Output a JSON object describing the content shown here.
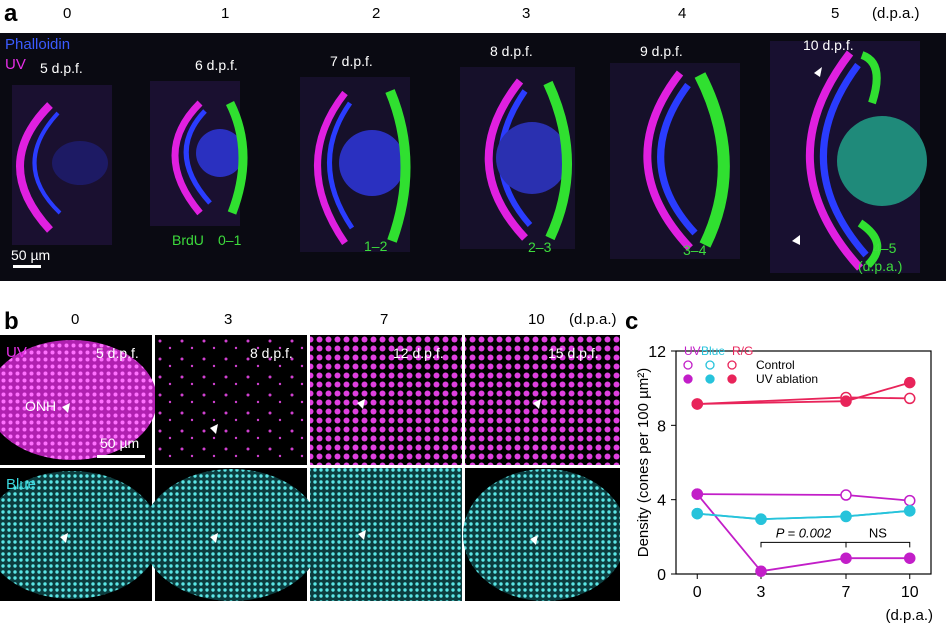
{
  "panel_a": {
    "label": "a",
    "dpa_headers": [
      "0",
      "1",
      "2",
      "3",
      "4",
      "5"
    ],
    "dpa_unit": "(d.p.a.)",
    "stain_phalloidin": "Phalloidin",
    "stain_uv": "UV",
    "dpf_labels": [
      "5 d.p.f.",
      "6 d.p.f.",
      "7 d.p.f.",
      "8 d.p.f.",
      "9 d.p.f.",
      "10 d.p.f."
    ],
    "brdu_label": "BrdU",
    "brdu_ranges": [
      "0–1",
      "1–2",
      "2–3",
      "3–4",
      "4–5"
    ],
    "brdu_unit": "(d.p.a.)",
    "scale_bar": "50 µm",
    "colors": {
      "phalloidin": "#2233ff",
      "uv": "#e020e0",
      "brdu": "#30e030",
      "background": "#0a0a12"
    }
  },
  "panel_b": {
    "label": "b",
    "dpa_headers": [
      "0",
      "3",
      "7",
      "10"
    ],
    "dpa_unit": "(d.p.a.)",
    "row_uv": "UV",
    "row_blue": "Blue",
    "dpf_labels": [
      "5 d.p.f.",
      "8 d.p.f.",
      "12 d.p.f.",
      "15 d.p.f."
    ],
    "onh_label": "ONH",
    "scale_bar": "50 µm",
    "colors": {
      "uv": "#d02cd0",
      "blue": "#30c8c8"
    }
  },
  "panel_c": {
    "label": "c",
    "chart_data": {
      "type": "line",
      "title": "",
      "xlabel": "(d.p.a.)",
      "ylabel": "Density (cones per 100 µm²)",
      "x": [
        0,
        3,
        7,
        10
      ],
      "xticks": [
        "0",
        "3",
        "7",
        "10"
      ],
      "yticks": [
        "0",
        "4",
        "8",
        "12"
      ],
      "ylim": [
        0,
        12
      ],
      "xlim": [
        -1,
        11
      ],
      "legend_colors": [
        "UV",
        "Blue",
        "R/G"
      ],
      "legend_conditions": [
        "Control",
        "UV ablation"
      ],
      "legend_placement": "top-left",
      "series": [
        {
          "name": "Control",
          "cone": "UV",
          "color": "#c21ec8",
          "open": true,
          "x": [
            0,
            7,
            10
          ],
          "y": [
            4.3,
            4.25,
            3.95
          ]
        },
        {
          "name": "UV ablation",
          "cone": "UV",
          "color": "#c21ec8",
          "open": false,
          "x": [
            0,
            3,
            7,
            10
          ],
          "y": [
            4.3,
            0.15,
            0.85,
            0.85
          ]
        },
        {
          "name": "Control",
          "cone": "Blue",
          "color": "#27c3db",
          "open": true,
          "x": [
            0,
            3,
            7,
            10
          ],
          "y": [
            3.25,
            2.95,
            3.1,
            3.4
          ]
        },
        {
          "name": "UV ablation",
          "cone": "Blue",
          "color": "#27c3db",
          "open": false,
          "x": [
            0,
            3,
            7,
            10
          ],
          "y": [
            3.25,
            2.95,
            3.1,
            3.4
          ]
        },
        {
          "name": "Control",
          "cone": "R/G",
          "color": "#e8245a",
          "open": true,
          "x": [
            0,
            7,
            10
          ],
          "y": [
            9.15,
            9.5,
            9.45
          ]
        },
        {
          "name": "UV ablation",
          "cone": "R/G",
          "color": "#e8245a",
          "open": false,
          "x": [
            0,
            7,
            10
          ],
          "y": [
            9.15,
            9.3,
            10.3
          ]
        }
      ],
      "annotations": [
        {
          "text": "P = 0.002",
          "x1": 3,
          "x2": 7,
          "y": 1.7
        },
        {
          "text": "NS",
          "x1": 7,
          "x2": 10,
          "y": 1.7
        }
      ]
    }
  }
}
